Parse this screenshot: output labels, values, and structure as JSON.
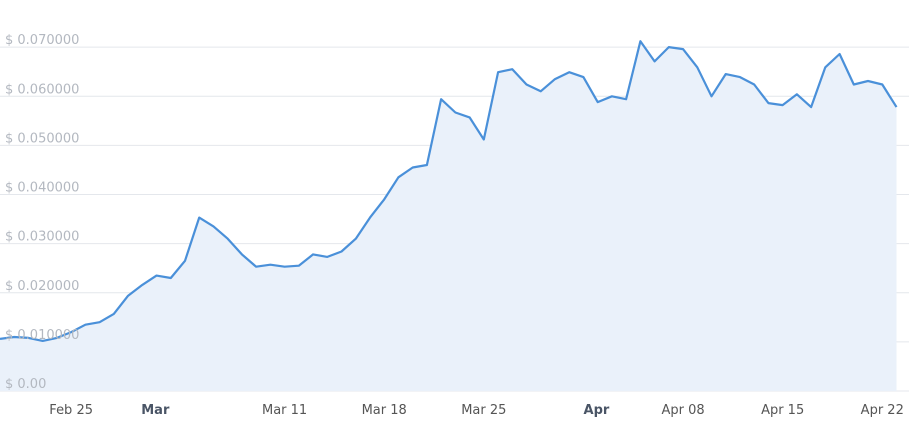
{
  "chart_data": {
    "type": "area",
    "color": "#4a90d9",
    "fill": "#eaf1fa",
    "grid": true,
    "categories": [
      "Feb 20",
      "Feb 21",
      "Feb 22",
      "Feb 23",
      "Feb 24",
      "Feb 25",
      "Feb 26",
      "Feb 27",
      "Feb 28",
      "Feb 29",
      "Mar 01",
      "Mar 02",
      "Mar 03",
      "Mar 04",
      "Mar 05",
      "Mar 06",
      "Mar 07",
      "Mar 08",
      "Mar 09",
      "Mar 10",
      "Mar 11",
      "Mar 12",
      "Mar 13",
      "Mar 14",
      "Mar 15",
      "Mar 16",
      "Mar 17",
      "Mar 18",
      "Mar 19",
      "Mar 20",
      "Mar 21",
      "Mar 22",
      "Mar 23",
      "Mar 24",
      "Mar 25",
      "Mar 26",
      "Mar 27",
      "Mar 28",
      "Mar 29",
      "Mar 30",
      "Mar 31",
      "Apr 01",
      "Apr 02",
      "Apr 03",
      "Apr 04",
      "Apr 05",
      "Apr 06",
      "Apr 07",
      "Apr 08",
      "Apr 09",
      "Apr 10",
      "Apr 11",
      "Apr 12",
      "Apr 13",
      "Apr 14",
      "Apr 15",
      "Apr 16",
      "Apr 17",
      "Apr 18",
      "Apr 19",
      "Apr 20",
      "Apr 21",
      "Apr 22",
      "Apr 23"
    ],
    "values": [
      0.0106,
      0.011,
      0.0108,
      0.0102,
      0.0108,
      0.012,
      0.0135,
      0.014,
      0.0157,
      0.0194,
      0.0216,
      0.0235,
      0.023,
      0.0265,
      0.0353,
      0.0335,
      0.031,
      0.0278,
      0.0253,
      0.0257,
      0.0253,
      0.0255,
      0.0278,
      0.0273,
      0.0284,
      0.031,
      0.0353,
      0.039,
      0.0435,
      0.0455,
      0.046,
      0.0594,
      0.0567,
      0.0557,
      0.0512,
      0.0649,
      0.0655,
      0.0624,
      0.061,
      0.0635,
      0.0649,
      0.0639,
      0.0588,
      0.06,
      0.0594,
      0.0712,
      0.0671,
      0.07,
      0.0696,
      0.0659,
      0.06,
      0.0645,
      0.0639,
      0.0624,
      0.0586,
      0.0582,
      0.0604,
      0.0578,
      0.0659,
      0.0686,
      0.0624,
      0.0631,
      0.0624,
      0.0578
    ],
    "ylim": [
      0,
      0.08
    ],
    "yticks": [
      {
        "value": 0,
        "label": "$ 0.00"
      },
      {
        "value": 0.01,
        "label": "$ 0.010000"
      },
      {
        "value": 0.02,
        "label": "$ 0.020000"
      },
      {
        "value": 0.03,
        "label": "$ 0.030000"
      },
      {
        "value": 0.04,
        "label": "$ 0.040000"
      },
      {
        "value": 0.05,
        "label": "$ 0.050000"
      },
      {
        "value": 0.06,
        "label": "$ 0.060000"
      },
      {
        "value": 0.07,
        "label": "$ 0.070000"
      }
    ],
    "xticks": [
      {
        "value": "Feb 25",
        "label": "Feb 25"
      },
      {
        "value": "Mar 01",
        "label": "Mar"
      },
      {
        "value": "Mar 11",
        "label": "Mar 11"
      },
      {
        "value": "Mar 18",
        "label": "Mar 18"
      },
      {
        "value": "Mar 25",
        "label": "Mar 25"
      },
      {
        "value": "Apr 01",
        "label": "Apr"
      },
      {
        "value": "Apr 08",
        "label": "Apr 08"
      },
      {
        "value": "Apr 15",
        "label": "Apr 15"
      },
      {
        "value": "Apr 22",
        "label": "Apr 22"
      }
    ]
  }
}
